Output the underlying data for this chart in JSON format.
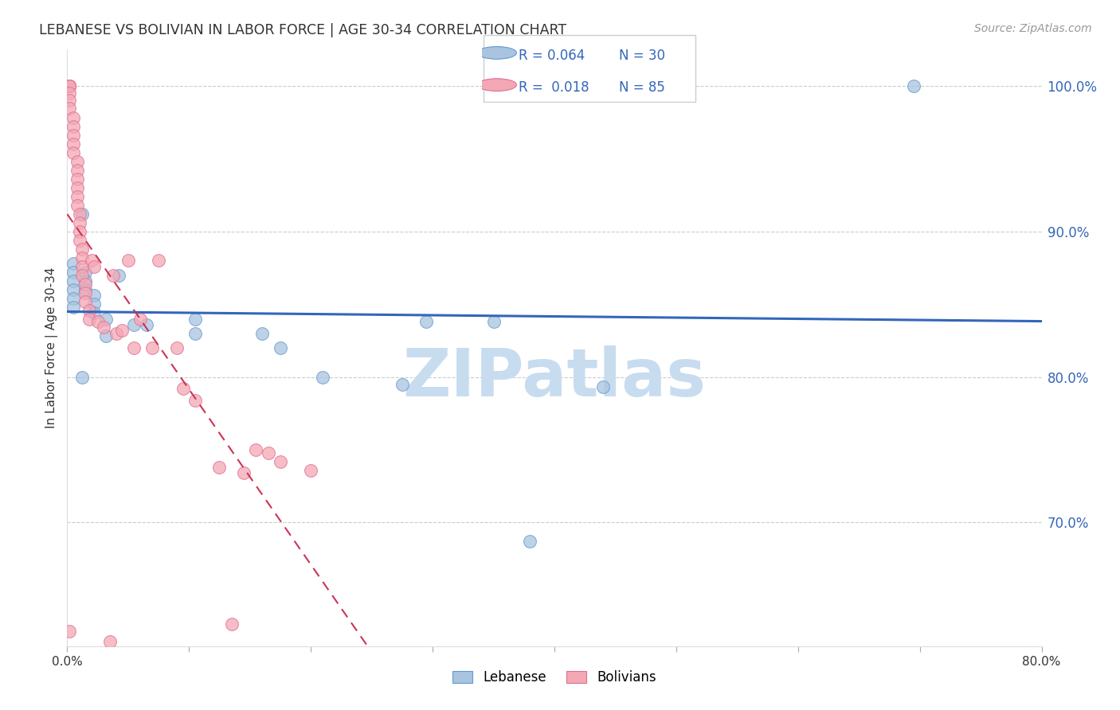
{
  "title": "LEBANESE VS BOLIVIAN IN LABOR FORCE | AGE 30-34 CORRELATION CHART",
  "source": "Source: ZipAtlas.com",
  "ylabel": "In Labor Force | Age 30-34",
  "xlim": [
    0.0,
    0.8
  ],
  "ylim": [
    0.615,
    1.025
  ],
  "yticks": [
    0.7,
    0.8,
    0.9,
    1.0
  ],
  "ytick_labels": [
    "70.0%",
    "80.0%",
    "90.0%",
    "100.0%"
  ],
  "xticks": [
    0.0,
    0.1,
    0.2,
    0.3,
    0.4,
    0.5,
    0.6,
    0.7,
    0.8
  ],
  "xtick_labels": [
    "0.0%",
    "",
    "",
    "",
    "",
    "",
    "",
    "",
    "80.0%"
  ],
  "legend_r_blue": "0.064",
  "legend_n_blue": "30",
  "legend_r_pink": "0.018",
  "legend_n_pink": "85",
  "blue_color": "#A8C4E0",
  "pink_color": "#F4A7B5",
  "blue_edge": "#6699CC",
  "pink_edge": "#E07090",
  "trendline_blue": "#3366BB",
  "trendline_pink": "#CC3355",
  "watermark_color": "#C8DCF0",
  "blue_points_x": [
    0.005,
    0.005,
    0.005,
    0.005,
    0.005,
    0.005,
    0.012,
    0.015,
    0.015,
    0.015,
    0.022,
    0.022,
    0.022,
    0.032,
    0.032,
    0.012,
    0.042,
    0.055,
    0.065,
    0.105,
    0.105,
    0.16,
    0.175,
    0.21,
    0.275,
    0.295,
    0.35,
    0.44,
    0.695,
    0.38
  ],
  "blue_points_y": [
    0.878,
    0.872,
    0.866,
    0.86,
    0.854,
    0.848,
    0.912,
    0.872,
    0.866,
    0.86,
    0.856,
    0.85,
    0.844,
    0.84,
    0.828,
    0.8,
    0.87,
    0.836,
    0.836,
    0.84,
    0.83,
    0.83,
    0.82,
    0.8,
    0.795,
    0.838,
    0.838,
    0.793,
    1.0,
    0.687
  ],
  "pink_points_x": [
    0.002,
    0.002,
    0.002,
    0.002,
    0.002,
    0.002,
    0.002,
    0.002,
    0.005,
    0.005,
    0.005,
    0.005,
    0.005,
    0.008,
    0.008,
    0.008,
    0.008,
    0.008,
    0.008,
    0.01,
    0.01,
    0.01,
    0.01,
    0.012,
    0.012,
    0.012,
    0.012,
    0.015,
    0.015,
    0.015,
    0.018,
    0.018,
    0.02,
    0.022,
    0.025,
    0.03,
    0.038,
    0.04,
    0.045,
    0.05,
    0.055,
    0.06,
    0.07,
    0.075,
    0.09,
    0.095,
    0.105,
    0.125,
    0.145,
    0.155,
    0.165,
    0.175,
    0.2,
    0.002,
    0.002,
    0.035,
    0.135
  ],
  "pink_points_y": [
    1.0,
    1.0,
    1.0,
    1.0,
    1.0,
    0.995,
    0.99,
    0.985,
    0.978,
    0.972,
    0.966,
    0.96,
    0.954,
    0.948,
    0.942,
    0.936,
    0.93,
    0.924,
    0.918,
    0.912,
    0.906,
    0.9,
    0.894,
    0.888,
    0.882,
    0.876,
    0.87,
    0.864,
    0.858,
    0.852,
    0.846,
    0.84,
    0.88,
    0.876,
    0.838,
    0.834,
    0.87,
    0.83,
    0.832,
    0.88,
    0.82,
    0.84,
    0.82,
    0.88,
    0.82,
    0.792,
    0.784,
    0.738,
    0.734,
    0.75,
    0.748,
    0.742,
    0.736,
    0.625,
    0.61,
    0.618,
    0.63
  ]
}
